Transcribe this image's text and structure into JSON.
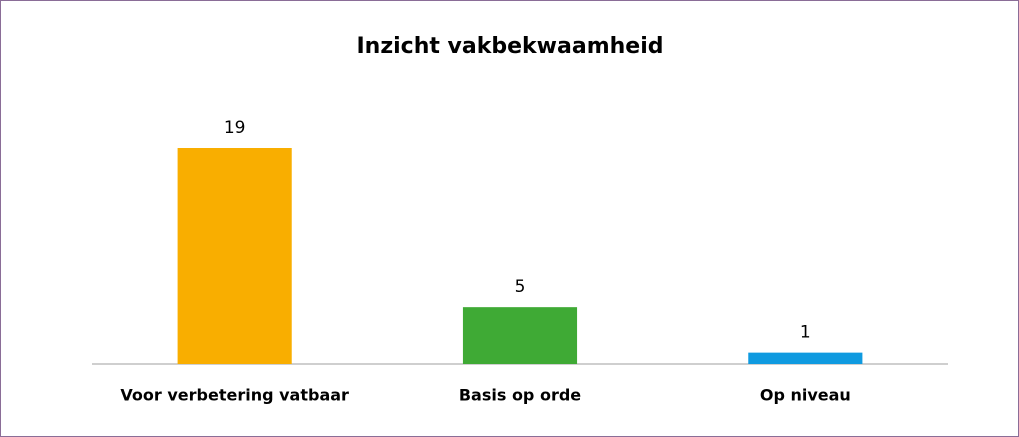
{
  "chart_data": {
    "type": "bar",
    "title": "Inzicht vakbekwaamheid",
    "categories": [
      "Voor verbetering vatbaar",
      "Basis op orde",
      "Op niveau"
    ],
    "values": [
      19,
      5,
      1
    ],
    "colors": [
      "#f9ae00",
      "#3faa35",
      "#0f9ae0"
    ]
  }
}
